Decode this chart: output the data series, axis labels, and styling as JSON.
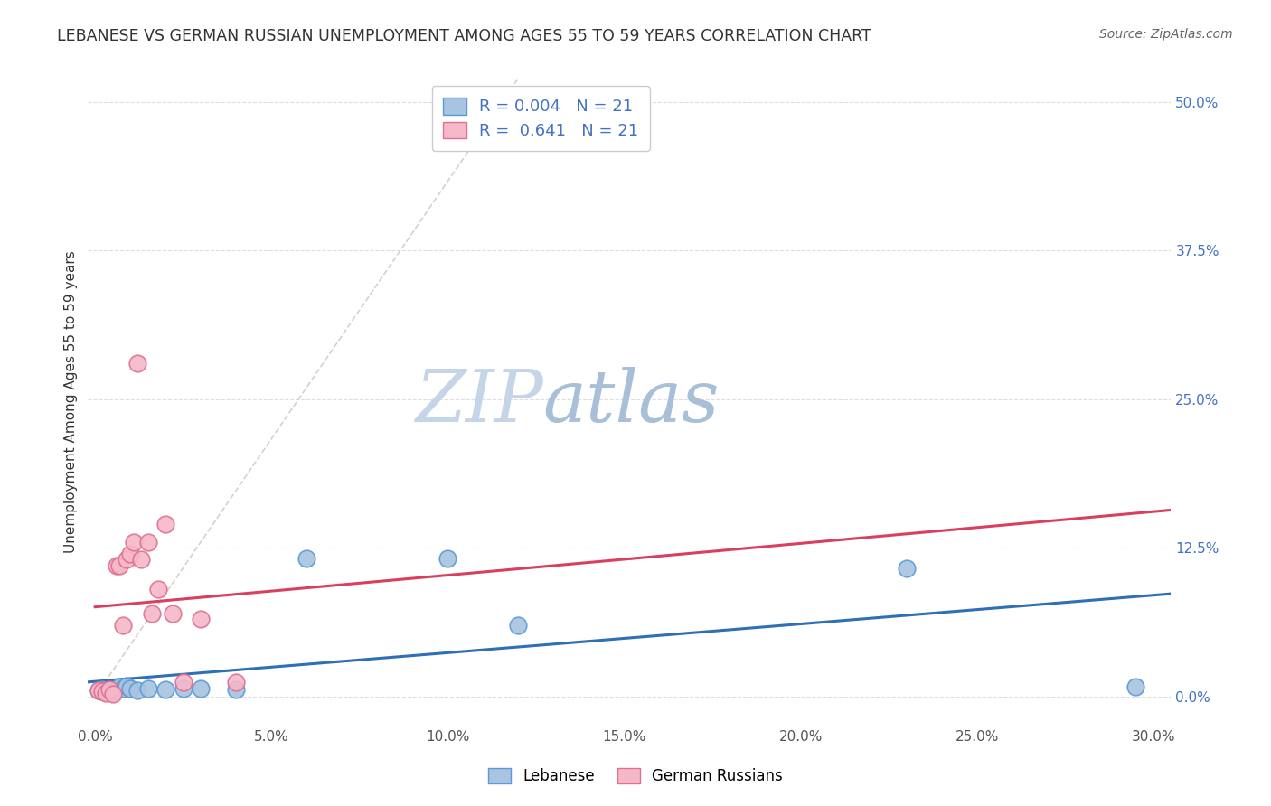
{
  "title": "LEBANESE VS GERMAN RUSSIAN UNEMPLOYMENT AMONG AGES 55 TO 59 YEARS CORRELATION CHART",
  "source": "Source: ZipAtlas.com",
  "xlabel_vals": [
    0.0,
    0.05,
    0.1,
    0.15,
    0.2,
    0.25,
    0.3
  ],
  "ylabel_vals": [
    0.0,
    0.125,
    0.25,
    0.375,
    0.5
  ],
  "ylabel_label": "Unemployment Among Ages 55 to 59 years",
  "xlim": [
    -0.002,
    0.305
  ],
  "ylim": [
    -0.025,
    0.52
  ],
  "legend_label1": "Lebanese",
  "legend_label2": "German Russians",
  "lebanese_x": [
    0.001,
    0.002,
    0.003,
    0.004,
    0.005,
    0.006,
    0.007,
    0.008,
    0.009,
    0.01,
    0.012,
    0.015,
    0.02,
    0.025,
    0.03,
    0.04,
    0.06,
    0.1,
    0.12,
    0.23,
    0.295
  ],
  "lebanese_y": [
    0.005,
    0.006,
    0.004,
    0.005,
    0.003,
    0.006,
    0.008,
    0.007,
    0.009,
    0.007,
    0.005,
    0.007,
    0.006,
    0.007,
    0.007,
    0.006,
    0.116,
    0.116,
    0.06,
    0.108,
    0.008
  ],
  "german_russian_x": [
    0.001,
    0.002,
    0.003,
    0.004,
    0.005,
    0.006,
    0.007,
    0.008,
    0.009,
    0.01,
    0.011,
    0.012,
    0.013,
    0.015,
    0.016,
    0.018,
    0.02,
    0.022,
    0.025,
    0.03,
    0.04
  ],
  "german_russian_y": [
    0.005,
    0.004,
    0.003,
    0.006,
    0.002,
    0.11,
    0.11,
    0.06,
    0.115,
    0.12,
    0.13,
    0.28,
    0.115,
    0.13,
    0.07,
    0.09,
    0.145,
    0.07,
    0.012,
    0.065,
    0.012
  ],
  "lebanese_color": "#a8c4e0",
  "lebanese_edge_color": "#5b9bd5",
  "german_russian_color": "#f4b8c8",
  "german_russian_edge_color": "#e07090",
  "lebanese_trend_color": "#2e6fb5",
  "german_russian_trend_color": "#d94060",
  "diagonal_color": "#d8c8c8",
  "watermark_zip_color": "#c8d4e8",
  "watermark_atlas_color": "#a0b8d0",
  "title_color": "#333333",
  "axis_tick_color_y": "#4472c4",
  "grid_color": "#dddddd",
  "legend_r1_text": "R = 0.004   N = 21",
  "legend_r2_text": "R =  0.641   N = 21"
}
